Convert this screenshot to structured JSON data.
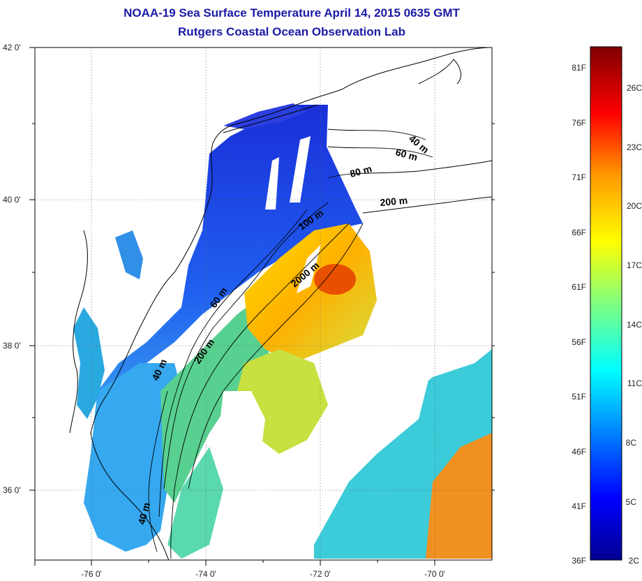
{
  "title": "NOAA-19 Sea Surface Temperature April 14, 2015 0635 GMT",
  "subtitle": "Rutgers Coastal Ocean Observation Lab",
  "map": {
    "lat_labels": [
      "42 0'",
      "40 0'",
      "38 0'",
      "36 0'"
    ],
    "lon_labels": [
      "-76 0'",
      "-74 0'",
      "-72 0'",
      "-70 0'"
    ],
    "contour_labels": [
      "40 m",
      "60 m",
      "80 m",
      "200 m",
      "100 m",
      "2000 m",
      "60 m",
      "200 m",
      "40 m",
      "40 m"
    ]
  },
  "colorbar": {
    "fahrenheit_labels": [
      "81F",
      "76F",
      "71F",
      "66F",
      "61F",
      "56F",
      "51F",
      "46F",
      "41F",
      "36F"
    ],
    "celsius_labels": [
      "26C",
      "23C",
      "20C",
      "17C",
      "14C",
      "11C",
      "8C",
      "5C",
      "2C"
    ],
    "colors": [
      "#7f0000",
      "#ff0000",
      "#ff9900",
      "#ffff00",
      "#80ff80",
      "#00ffff",
      "#0080ff",
      "#0000ff",
      "#00008f"
    ]
  }
}
